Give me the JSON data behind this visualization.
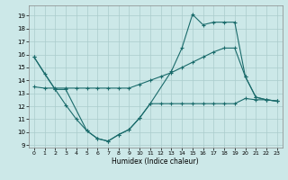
{
  "xlabel": "Humidex (Indice chaleur)",
  "bg_color": "#cce8e8",
  "grid_color": "#aacccc",
  "line_color": "#1a6b6b",
  "xlim": [
    -0.5,
    23.5
  ],
  "ylim": [
    8.8,
    19.8
  ],
  "yticks": [
    9,
    10,
    11,
    12,
    13,
    14,
    15,
    16,
    17,
    18,
    19
  ],
  "xticks": [
    0,
    1,
    2,
    3,
    4,
    5,
    6,
    7,
    8,
    9,
    10,
    11,
    12,
    13,
    14,
    15,
    16,
    17,
    18,
    19,
    20,
    21,
    22,
    23
  ],
  "series1_x": [
    0,
    1,
    2,
    3,
    4,
    5,
    6,
    7,
    8,
    9,
    10,
    11,
    12,
    13,
    14,
    15,
    16,
    17,
    18,
    19,
    20,
    21,
    22,
    23
  ],
  "series1_y": [
    15.8,
    14.5,
    13.3,
    12.1,
    11.0,
    10.1,
    9.5,
    9.3,
    9.8,
    10.2,
    11.1,
    12.2,
    12.2,
    12.2,
    12.2,
    12.2,
    12.2,
    12.2,
    12.2,
    12.2,
    12.6,
    12.5,
    12.5,
    12.4
  ],
  "series2_x": [
    0,
    1,
    2,
    3,
    4,
    5,
    6,
    7,
    8,
    9,
    10,
    11,
    12,
    13,
    14,
    15,
    16,
    17,
    18,
    19,
    20,
    21,
    22,
    23
  ],
  "series2_y": [
    13.5,
    13.4,
    13.4,
    13.4,
    13.4,
    13.4,
    13.4,
    13.4,
    13.4,
    13.4,
    13.7,
    14.0,
    14.3,
    14.6,
    15.0,
    15.4,
    15.8,
    16.2,
    16.5,
    16.5,
    14.3,
    12.7,
    12.5,
    12.4
  ],
  "series3_x": [
    0,
    2,
    3,
    5,
    6,
    7,
    8,
    9,
    10,
    11,
    13,
    14,
    15,
    16,
    17,
    18,
    19,
    20,
    21,
    22,
    23
  ],
  "series3_y": [
    15.8,
    13.3,
    13.3,
    10.1,
    9.5,
    9.3,
    9.8,
    10.2,
    11.1,
    12.2,
    14.7,
    16.5,
    19.1,
    18.3,
    18.5,
    18.5,
    18.5,
    14.3,
    12.7,
    12.5,
    12.4
  ]
}
